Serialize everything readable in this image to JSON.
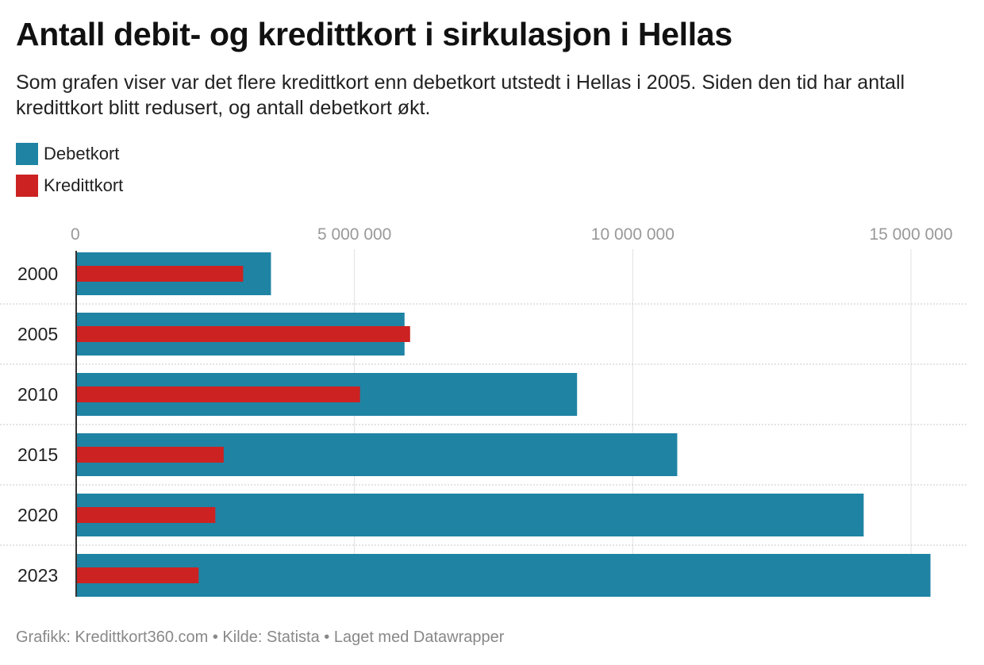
{
  "header": {
    "title": "Antall debit- og kredittkort i sirkulasjon i Hellas",
    "subtitle": "Som grafen viser var det flere kredittkort enn debetkort utstedt i Hellas i 2005. Siden den tid har antall kredittkort blitt redusert, og antall debetkort økt."
  },
  "legend": {
    "items": [
      {
        "label": "Debetkort",
        "color": "#1f83a4"
      },
      {
        "label": "Kredittkort",
        "color": "#cc2222"
      }
    ]
  },
  "footer": {
    "credit": "Grafikk: Kredittkort360.com • Kilde: Statista • Laget med Datawrapper"
  },
  "chart_data": {
    "type": "bar",
    "orientation": "horizontal",
    "title": "Antall debit- og kredittkort i sirkulasjon i Hellas",
    "categories": [
      "2000",
      "2005",
      "2010",
      "2015",
      "2020",
      "2023"
    ],
    "series": [
      {
        "name": "Debetkort",
        "color": "#1f83a4",
        "values": [
          3500000,
          5900000,
          9000000,
          10800000,
          14150000,
          15350000
        ]
      },
      {
        "name": "Kredittkort",
        "color": "#cc2222",
        "values": [
          3000000,
          6000000,
          5100000,
          2650000,
          2500000,
          2200000
        ]
      }
    ],
    "xlim": [
      0,
      15000000
    ],
    "xticks": [
      0,
      5000000,
      10000000,
      15000000
    ],
    "xtick_labels": [
      "0",
      "5 000 000",
      "10 000 000",
      "15 000 000"
    ],
    "xlabel": "",
    "ylabel": "",
    "grid": true,
    "legend_position": "top-left"
  }
}
